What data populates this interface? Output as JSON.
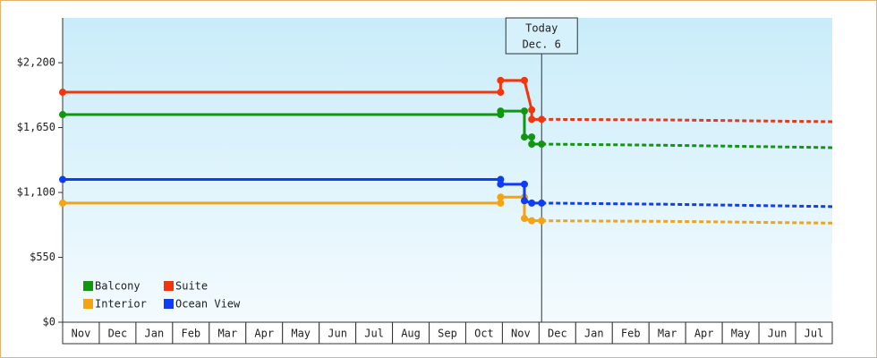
{
  "chart_data": {
    "type": "step-line",
    "categories": [
      "Nov",
      "Dec",
      "Jan",
      "Feb",
      "Mar",
      "Apr",
      "May",
      "Jun",
      "Jul",
      "Aug",
      "Sep",
      "Oct",
      "Nov",
      "Dec",
      "Jan",
      "Feb",
      "Mar",
      "Apr",
      "May",
      "Jun",
      "Jul"
    ],
    "xlim": [
      0,
      21
    ],
    "ylim": [
      0,
      2580
    ],
    "yticks": [
      {
        "value": 0,
        "label": "$0"
      },
      {
        "value": 550,
        "label": "$550"
      },
      {
        "value": 1100,
        "label": "$1,100"
      },
      {
        "value": 1650,
        "label": "$1,650"
      },
      {
        "value": 2200,
        "label": "$2,200"
      }
    ],
    "today": {
      "x": 13.07,
      "label": [
        "Today",
        "Dec. 6"
      ]
    },
    "series": [
      {
        "name": "Balcony",
        "color": "#129612",
        "x": [
          0,
          11.95,
          11.95,
          12.6,
          12.6,
          12.8,
          12.8,
          13.07
        ],
        "values": [
          1760,
          1760,
          1790,
          1790,
          1570,
          1570,
          1510,
          1510
        ],
        "forecast": {
          "x": [
            13.07,
            16.5,
            21
          ],
          "values": [
            1510,
            1500,
            1480
          ]
        }
      },
      {
        "name": "Suite",
        "color": "#f2360c",
        "x": [
          0,
          11.95,
          11.95,
          12.6,
          12.8,
          12.8,
          13.07
        ],
        "values": [
          1950,
          1950,
          2050,
          2050,
          1800,
          1720,
          1720
        ],
        "forecast": {
          "x": [
            13.07,
            16.5,
            21
          ],
          "values": [
            1720,
            1715,
            1700
          ]
        }
      },
      {
        "name": "Interior",
        "color": "#f5a30f",
        "x": [
          0,
          11.95,
          11.95,
          12.6,
          12.6,
          12.8,
          13.07
        ],
        "values": [
          1010,
          1010,
          1060,
          1060,
          880,
          860,
          860
        ],
        "forecast": {
          "x": [
            13.07,
            16.5,
            21
          ],
          "values": [
            860,
            855,
            840
          ]
        }
      },
      {
        "name": "Ocean View",
        "color": "#0f3cf5",
        "x": [
          0,
          11.95,
          11.95,
          12.6,
          12.6,
          12.8,
          13.07
        ],
        "values": [
          1210,
          1210,
          1170,
          1170,
          1030,
          1010,
          1010
        ],
        "forecast": {
          "x": [
            13.07,
            16.5,
            21
          ],
          "values": [
            1010,
            1000,
            980
          ]
        }
      }
    ]
  }
}
